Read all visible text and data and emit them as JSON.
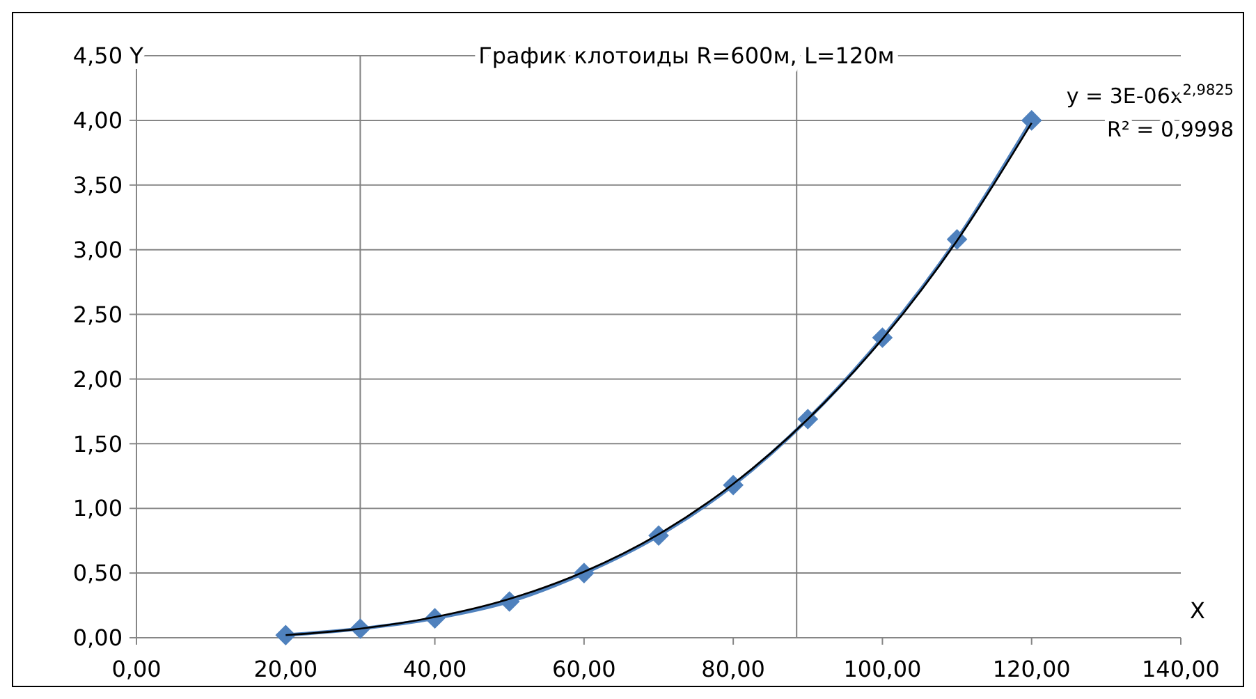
{
  "chart_data": {
    "type": "line",
    "title": "График клотоиды R=600м, L=120м",
    "xlabel": "X",
    "ylabel": "Y",
    "x": [
      20,
      30,
      40,
      50,
      60,
      70,
      80,
      90,
      100,
      110,
      120
    ],
    "series": [
      {
        "color": "#4f81bd",
        "marker": "diamond",
        "line_style": "solid",
        "values": [
          0.02,
          0.07,
          0.15,
          0.28,
          0.5,
          0.79,
          1.18,
          1.69,
          2.32,
          3.08,
          4.0
        ]
      },
      {
        "type": "line",
        "color": "#000000",
        "marker": "none",
        "line_style": "solid",
        "x": [
          20,
          30,
          40,
          50,
          60,
          70,
          80,
          90,
          100,
          110,
          120
        ],
        "values": [
          0.02,
          0.07,
          0.16,
          0.3,
          0.51,
          0.8,
          1.19,
          1.69,
          2.31,
          3.07,
          3.98
        ]
      }
    ],
    "xlim": [
      0,
      140
    ],
    "xticks": [
      {
        "value": 0,
        "label": "0,00"
      },
      {
        "value": 20,
        "label": "20,00"
      },
      {
        "value": 40,
        "label": "40,00"
      },
      {
        "value": 60,
        "label": "60,00"
      },
      {
        "value": 80,
        "label": "80,00"
      },
      {
        "value": 100,
        "label": "100,00"
      },
      {
        "value": 120,
        "label": "120,00"
      },
      {
        "value": 140,
        "label": "140,00"
      }
    ],
    "ylim": [
      0,
      4.5
    ],
    "yticks": [
      {
        "value": 0,
        "label": "0,00"
      },
      {
        "value": 0.5,
        "label": "0,50"
      },
      {
        "value": 1,
        "label": "1,00"
      },
      {
        "value": 1.5,
        "label": "1,50"
      },
      {
        "value": 2,
        "label": "2,00"
      },
      {
        "value": 2.5,
        "label": "2,50"
      },
      {
        "value": 3,
        "label": "3,00"
      },
      {
        "value": 3.5,
        "label": "3,50"
      },
      {
        "value": 4,
        "label": "4,00"
      },
      {
        "value": 4.5,
        "label": "4,50"
      }
    ],
    "grid": "y",
    "ref_lines": [
      {
        "axis": "x",
        "value": 30,
        "color": "#808080"
      },
      {
        "axis": "x",
        "value": 88.5,
        "color": "#808080"
      }
    ],
    "annotations": [
      "y = 3E-06x$^{2,9825}$",
      "R² = 0,9998"
    ]
  }
}
